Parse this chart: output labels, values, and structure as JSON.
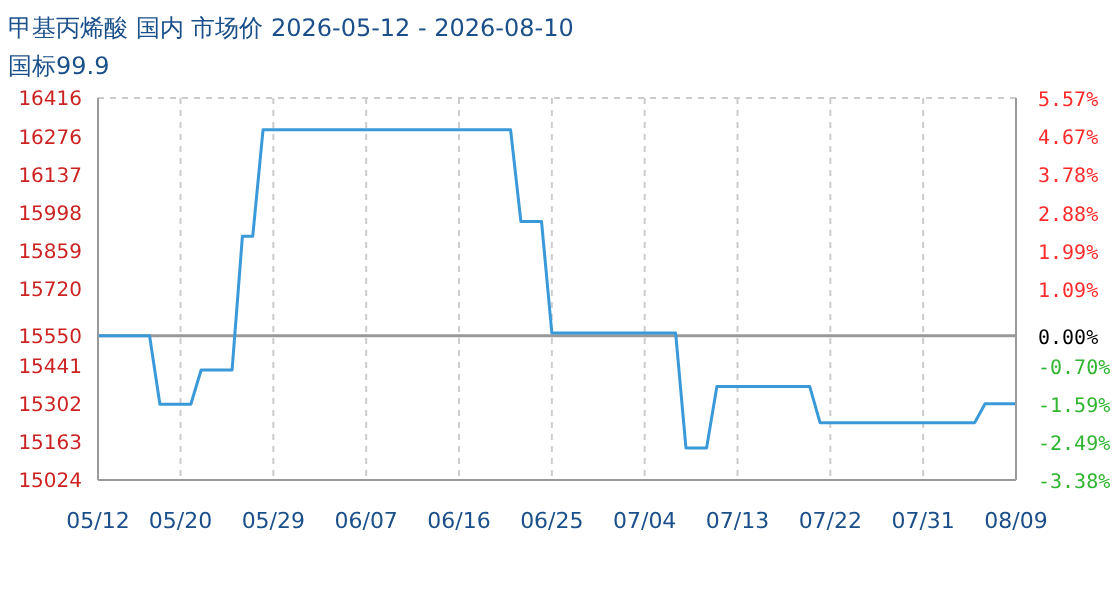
{
  "chart_data": {
    "type": "line",
    "title": "甲基丙烯酸 国内 市场价 2026-05-12 - 2026-08-10",
    "subtitle": "国标99.9",
    "x": [
      "2026-05-12",
      "2026-05-17",
      "2026-05-18",
      "2026-05-21",
      "2026-05-22",
      "2026-05-25",
      "2026-05-26",
      "2026-05-27",
      "2026-05-28",
      "2026-06-21",
      "2026-06-22",
      "2026-06-24",
      "2026-06-25",
      "2026-07-07",
      "2026-07-08",
      "2026-07-10",
      "2026-07-11",
      "2026-07-20",
      "2026-07-21",
      "2026-08-05",
      "2026-08-06",
      "2026-08-09"
    ],
    "series": [
      {
        "color": "#3a9ad9",
        "values": [
          15550,
          15550,
          15300,
          15300,
          15425,
          15425,
          15912,
          15912,
          16300,
          16300,
          15966,
          15966,
          15560,
          15560,
          15141,
          15141,
          15365,
          15365,
          15233,
          15233,
          15302,
          15302
        ]
      }
    ],
    "xlim": [
      "2026-05-12",
      "2026-08-09"
    ],
    "xticks": [
      {
        "value": "2026-05-12",
        "label": "05/12"
      },
      {
        "value": "2026-05-20",
        "label": "05/20"
      },
      {
        "value": "2026-05-29",
        "label": "05/29"
      },
      {
        "value": "2026-06-07",
        "label": "06/07"
      },
      {
        "value": "2026-06-16",
        "label": "06/16"
      },
      {
        "value": "2026-06-25",
        "label": "06/25"
      },
      {
        "value": "2026-07-04",
        "label": "07/04"
      },
      {
        "value": "2026-07-13",
        "label": "07/13"
      },
      {
        "value": "2026-07-22",
        "label": "07/22"
      },
      {
        "value": "2026-07-31",
        "label": "07/31"
      },
      {
        "value": "2026-08-09",
        "label": "08/09"
      }
    ],
    "ylim": [
      15024,
      16416
    ],
    "yticks": [
      15024,
      15163,
      15302,
      15441,
      15550,
      15720,
      15859,
      15998,
      16137,
      16276,
      16416
    ],
    "y2lim": [
      -3.38,
      5.57
    ],
    "y2ticks": [
      {
        "value": -3.38,
        "label": "-3.38%"
      },
      {
        "value": -2.49,
        "label": "-2.49%"
      },
      {
        "value": -1.59,
        "label": "-1.59%"
      },
      {
        "value": -0.7,
        "label": "-0.70%"
      },
      {
        "value": 0,
        "label": "0.00%"
      },
      {
        "value": 1.09,
        "label": "1.09%"
      },
      {
        "value": 1.99,
        "label": "1.99%"
      },
      {
        "value": 2.88,
        "label": "2.88%"
      },
      {
        "value": 3.78,
        "label": "3.78%"
      },
      {
        "value": 4.67,
        "label": "4.67%"
      },
      {
        "value": 5.57,
        "label": "5.57%"
      }
    ],
    "ref_lines": [
      {
        "axis": "y",
        "value": 15550,
        "color": "#999999"
      }
    ],
    "grid": true,
    "marker": "none",
    "line_style": "solid"
  }
}
